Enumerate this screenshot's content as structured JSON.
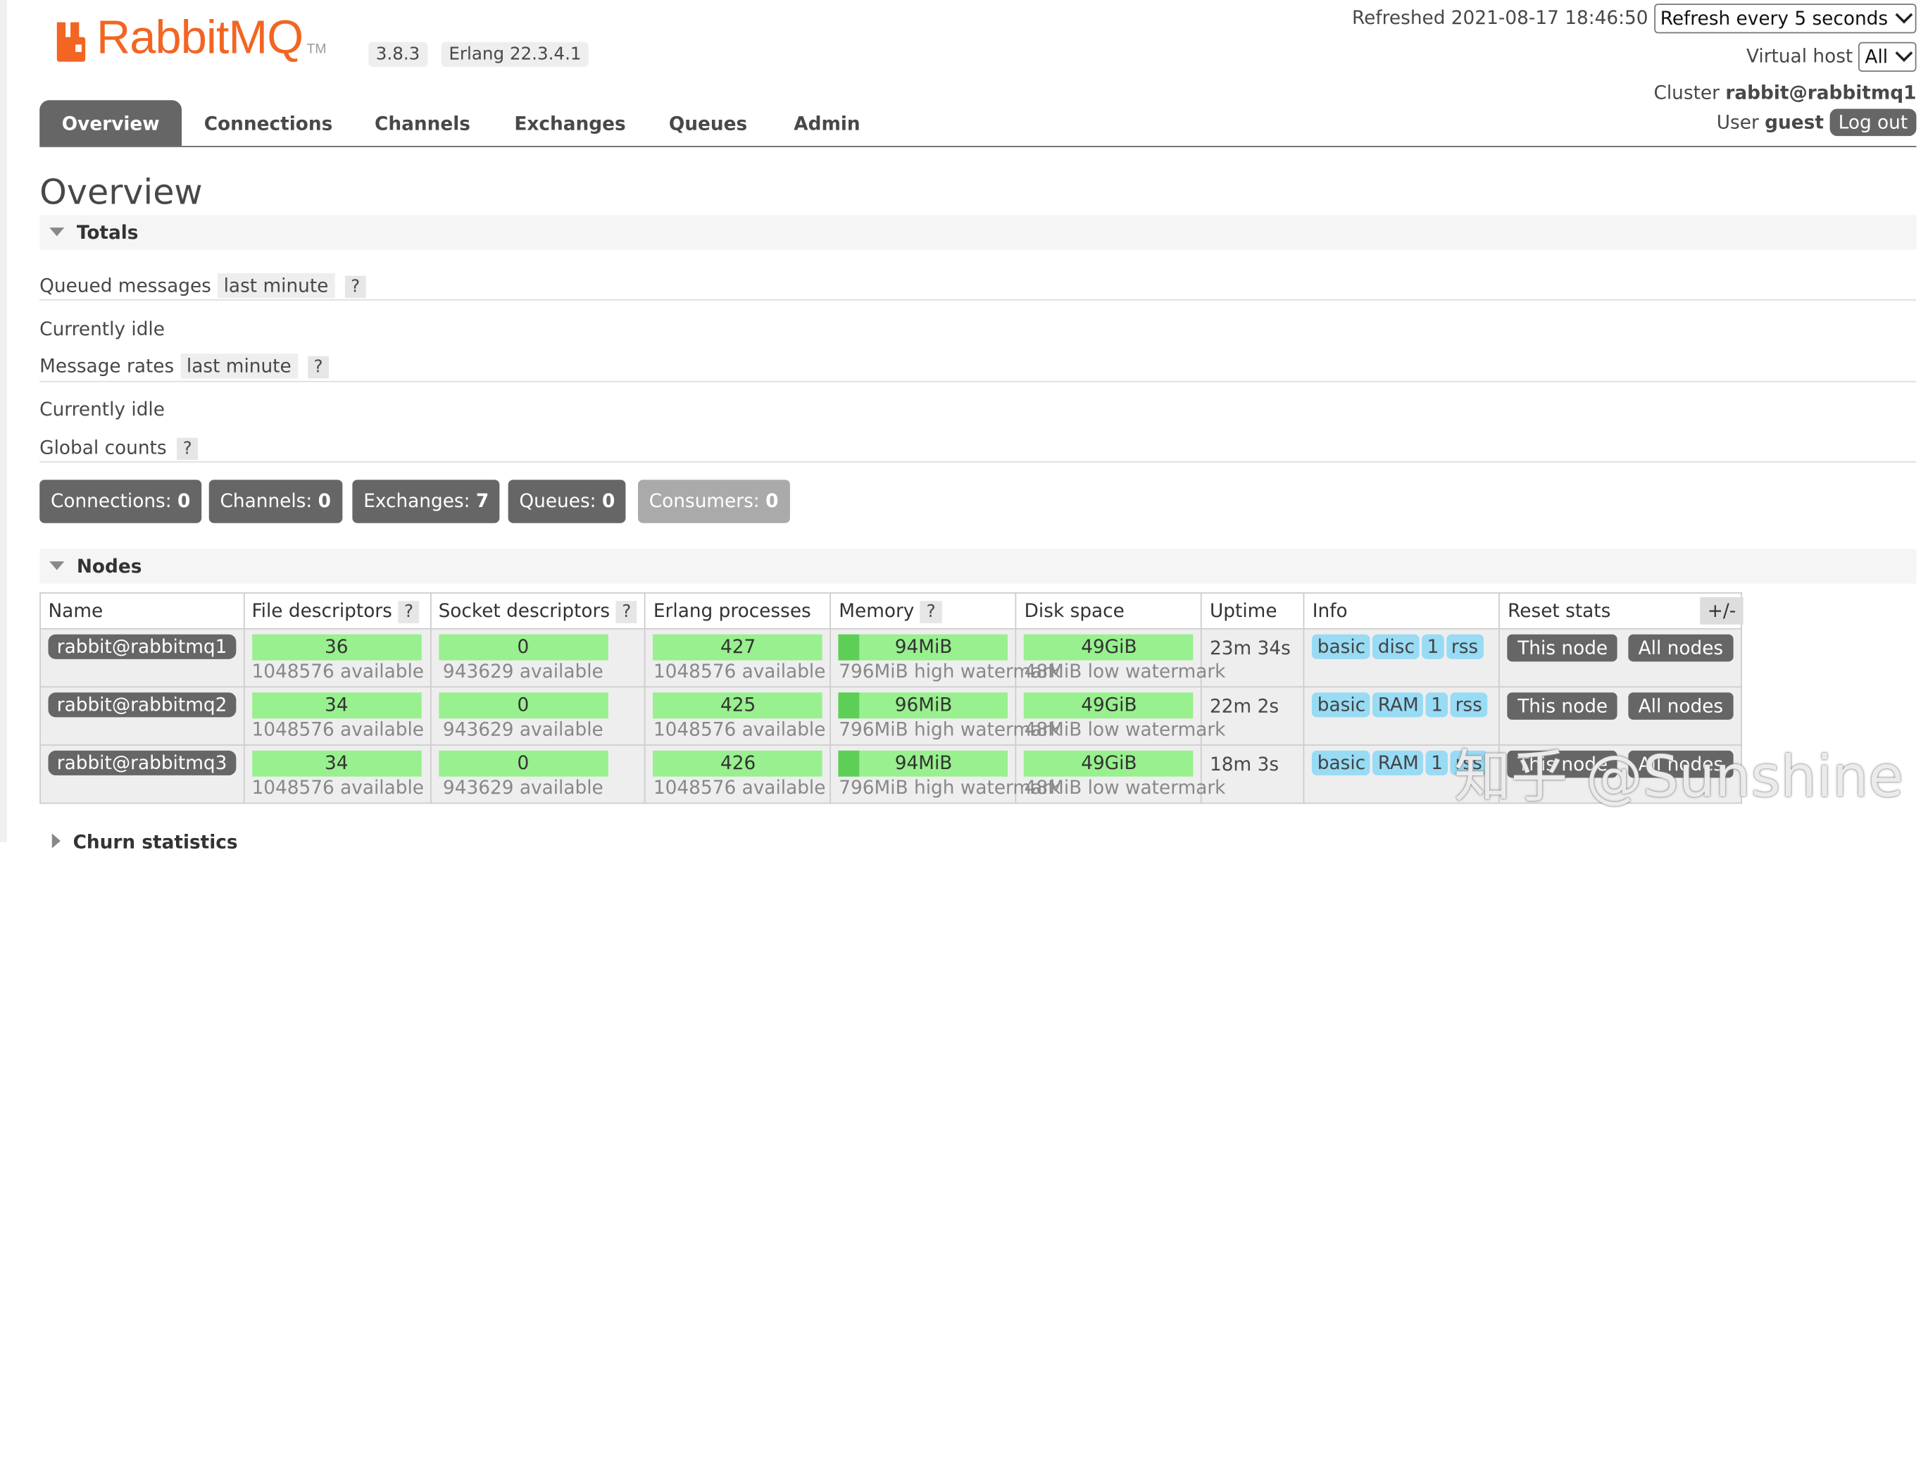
{
  "app": {
    "logo_text": "RabbitMQ",
    "logo_tm": "TM",
    "version": "3.8.3",
    "erlang": "Erlang 22.3.4.1",
    "brand_color": "#f26522"
  },
  "header": {
    "refreshed": "Refreshed 2021-08-17 18:46:50",
    "refresh_select": "Refresh every 5 seconds",
    "vhost_label": "Virtual host",
    "vhost_value": "All",
    "cluster_label": "Cluster",
    "cluster_name": "rabbit@rabbitmq1",
    "user_label": "User",
    "user_name": "guest",
    "logout": "Log out"
  },
  "nav": {
    "tabs": [
      "Overview",
      "Connections",
      "Channels",
      "Exchanges",
      "Queues",
      "Admin"
    ],
    "active": "Overview"
  },
  "page_title": "Overview",
  "totals": {
    "title": "Totals",
    "queued_label": "Queued messages",
    "queued_range": "last minute",
    "queued_status": "Currently idle",
    "rates_label": "Message rates",
    "rates_range": "last minute",
    "rates_status": "Currently idle",
    "global_label": "Global counts",
    "help": "?",
    "counts": [
      {
        "label": "Connections:",
        "value": "0"
      },
      {
        "label": "Channels:",
        "value": "0"
      },
      {
        "label": "Exchanges:",
        "value": "7"
      },
      {
        "label": "Queues:",
        "value": "0"
      },
      {
        "label": "Consumers:",
        "value": "0"
      }
    ]
  },
  "nodes": {
    "title": "Nodes",
    "columns": [
      "Name",
      "File descriptors",
      "Socket descriptors",
      "Erlang processes",
      "Memory",
      "Disk space",
      "Uptime",
      "Info",
      "Reset stats"
    ],
    "toggle": "+/-",
    "rows": [
      {
        "name": "rabbit@rabbitmq1",
        "fd": "36",
        "fd_avail": "1048576 available",
        "sd": "0",
        "sd_avail": "943629 available",
        "ep": "427",
        "ep_avail": "1048576 available",
        "mem": "94MiB",
        "mem_fraction": 0.118,
        "mem_sub": "796MiB high watermark",
        "disk": "49GiB",
        "disk_sub": "48MiB low watermark",
        "uptime": "23m 34s",
        "info": [
          "basic",
          "disc",
          "1",
          "rss"
        ],
        "reset_this": "This node",
        "reset_all": "All nodes"
      },
      {
        "name": "rabbit@rabbitmq2",
        "fd": "34",
        "fd_avail": "1048576 available",
        "sd": "0",
        "sd_avail": "943629 available",
        "ep": "425",
        "ep_avail": "1048576 available",
        "mem": "96MiB",
        "mem_fraction": 0.121,
        "mem_sub": "796MiB high watermark",
        "disk": "49GiB",
        "disk_sub": "48MiB low watermark",
        "uptime": "22m 2s",
        "info": [
          "basic",
          "RAM",
          "1",
          "rss"
        ],
        "reset_this": "This node",
        "reset_all": "All nodes"
      },
      {
        "name": "rabbit@rabbitmq3",
        "fd": "34",
        "fd_avail": "1048576 available",
        "sd": "0",
        "sd_avail": "943629 available",
        "ep": "426",
        "ep_avail": "1048576 available",
        "mem": "94MiB",
        "mem_fraction": 0.118,
        "mem_sub": "796MiB high watermark",
        "disk": "49GiB",
        "disk_sub": "48MiB low watermark",
        "uptime": "18m 3s",
        "info": [
          "basic",
          "RAM",
          "1",
          "rss"
        ],
        "reset_this": "This node",
        "reset_all": "All nodes"
      }
    ]
  },
  "churn": {
    "title": "Churn statistics"
  },
  "watermark": "知乎 @Sunshine"
}
